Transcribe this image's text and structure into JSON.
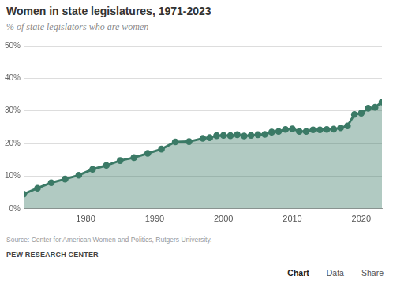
{
  "chart_data": {
    "type": "area",
    "title": "Women in state legislatures, 1971-2023",
    "subtitle": "% of state legislators who are women",
    "source": "Source: Center for American Women and Politics, Rutgers University.",
    "credit": "PEW RESEARCH CENTER",
    "footer_links": [
      "Chart",
      "Data",
      "Share"
    ],
    "x": [
      1971,
      1973,
      1975,
      1977,
      1979,
      1981,
      1983,
      1985,
      1987,
      1989,
      1991,
      1993,
      1995,
      1997,
      1998,
      1999,
      2000,
      2001,
      2002,
      2003,
      2004,
      2005,
      2006,
      2007,
      2008,
      2009,
      2010,
      2011,
      2012,
      2013,
      2014,
      2015,
      2016,
      2017,
      2018,
      2019,
      2020,
      2021,
      2022,
      2023
    ],
    "values": [
      4.5,
      6.3,
      8.0,
      9.1,
      10.3,
      12.1,
      13.3,
      14.8,
      15.7,
      17.0,
      18.3,
      20.5,
      20.6,
      21.6,
      21.8,
      22.4,
      22.5,
      22.4,
      22.7,
      22.3,
      22.5,
      22.7,
      22.8,
      23.5,
      23.7,
      24.3,
      24.5,
      23.7,
      23.7,
      24.2,
      24.2,
      24.3,
      24.4,
      24.8,
      25.4,
      28.9,
      29.3,
      30.8,
      31.1,
      32.7
    ],
    "color": "#3b7a66",
    "marker": "circle",
    "xlim": [
      1971,
      2023
    ],
    "xticks": [
      1980,
      1990,
      2000,
      2010,
      2020
    ],
    "ylim": [
      0,
      50
    ],
    "yticks": [
      {
        "value": 0,
        "label": "0%"
      },
      {
        "value": 10,
        "label": "10%"
      },
      {
        "value": 20,
        "label": "20%"
      },
      {
        "value": 30,
        "label": "30%"
      },
      {
        "value": 40,
        "label": "40%"
      },
      {
        "value": 50,
        "label": "50%"
      }
    ],
    "grid": true
  }
}
